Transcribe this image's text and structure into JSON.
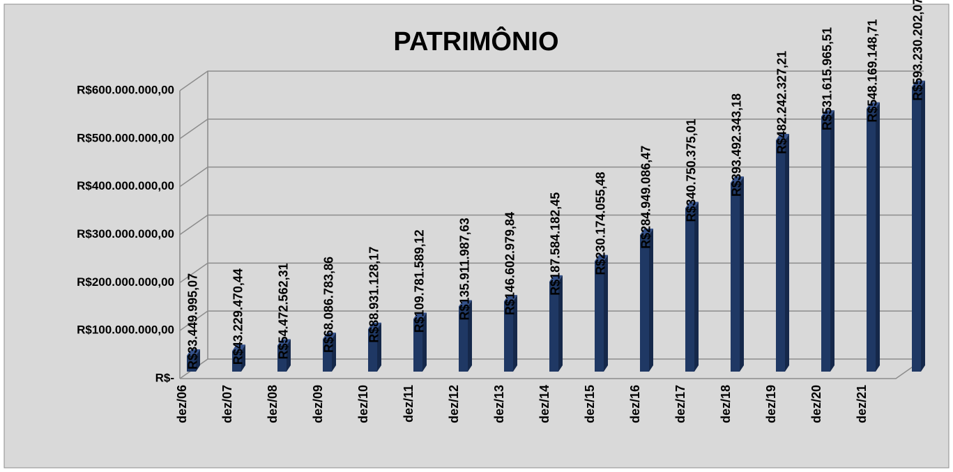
{
  "chart_data": {
    "type": "bar3d",
    "title": "PATRIMÔNIO",
    "categories": [
      "dez/06",
      "dez/07",
      "dez/08",
      "dez/09",
      "dez/10",
      "dez/11",
      "dez/12",
      "dez/13",
      "dez/14",
      "dez/15",
      "dez/16",
      "dez/17",
      "dez/18",
      "dez/19",
      "dez/20",
      "dez/21",
      null
    ],
    "values": [
      33449995.07,
      43229470.44,
      54472562.31,
      68086783.86,
      88931128.17,
      109781589.12,
      135911987.63,
      146602979.84,
      187584182.45,
      230174055.48,
      284949086.47,
      340750375.01,
      393492343.18,
      482242327.21,
      531615965.51,
      548169148.71,
      593230202.07
    ],
    "value_labels": [
      "R$33.449.995,07",
      "R$43.229.470,44",
      "R$54.472.562,31",
      "R$68.086.783,86",
      "R$88.931.128,17",
      "R$109.781.589,12",
      "R$135.911.987,63",
      "R$146.602.979,84",
      "R$187.584.182,45",
      "R$230.174.055,48",
      "R$284.949.086,47",
      "R$340.750.375,01",
      "R$393.492.343,18",
      "R$482.242.327,21",
      "R$531.615.965,51",
      "R$548.169.148,71",
      "R$593.230.202,07"
    ],
    "color": "#1f3864",
    "ylim": [
      0,
      600000000
    ],
    "yticks": [
      {
        "value": 0,
        "label": "R$-"
      },
      {
        "value": 100000000,
        "label": "R$100.000.000,00"
      },
      {
        "value": 200000000,
        "label": "R$200.000.000,00"
      },
      {
        "value": 300000000,
        "label": "R$300.000.000,00"
      },
      {
        "value": 400000000,
        "label": "R$400.000.000,00"
      },
      {
        "value": 500000000,
        "label": "R$500.000.000,00"
      },
      {
        "value": 600000000,
        "label": "R$600.000.000,00"
      }
    ],
    "grid": true
  }
}
